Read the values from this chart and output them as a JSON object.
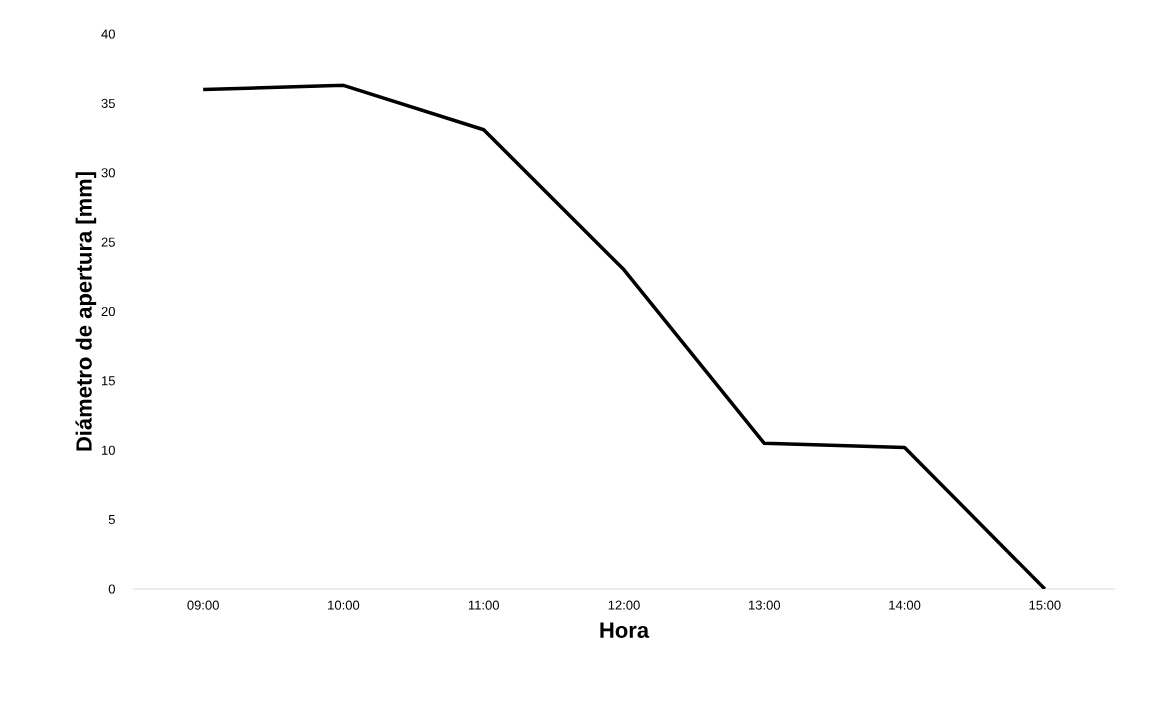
{
  "chart_data": {
    "type": "line",
    "xlabel": "Hora",
    "ylabel": "Diámetro de apertura [mm]",
    "categories": [
      "09:00",
      "10:00",
      "11:00",
      "12:00",
      "13:00",
      "14:00",
      "15:00"
    ],
    "values": [
      36,
      36.3,
      33.1,
      23,
      10.5,
      10.2,
      0
    ],
    "color": "#000000",
    "ylim": [
      0,
      40
    ],
    "yticks": [
      0,
      5,
      10,
      15,
      20,
      25,
      30,
      35,
      40
    ]
  }
}
